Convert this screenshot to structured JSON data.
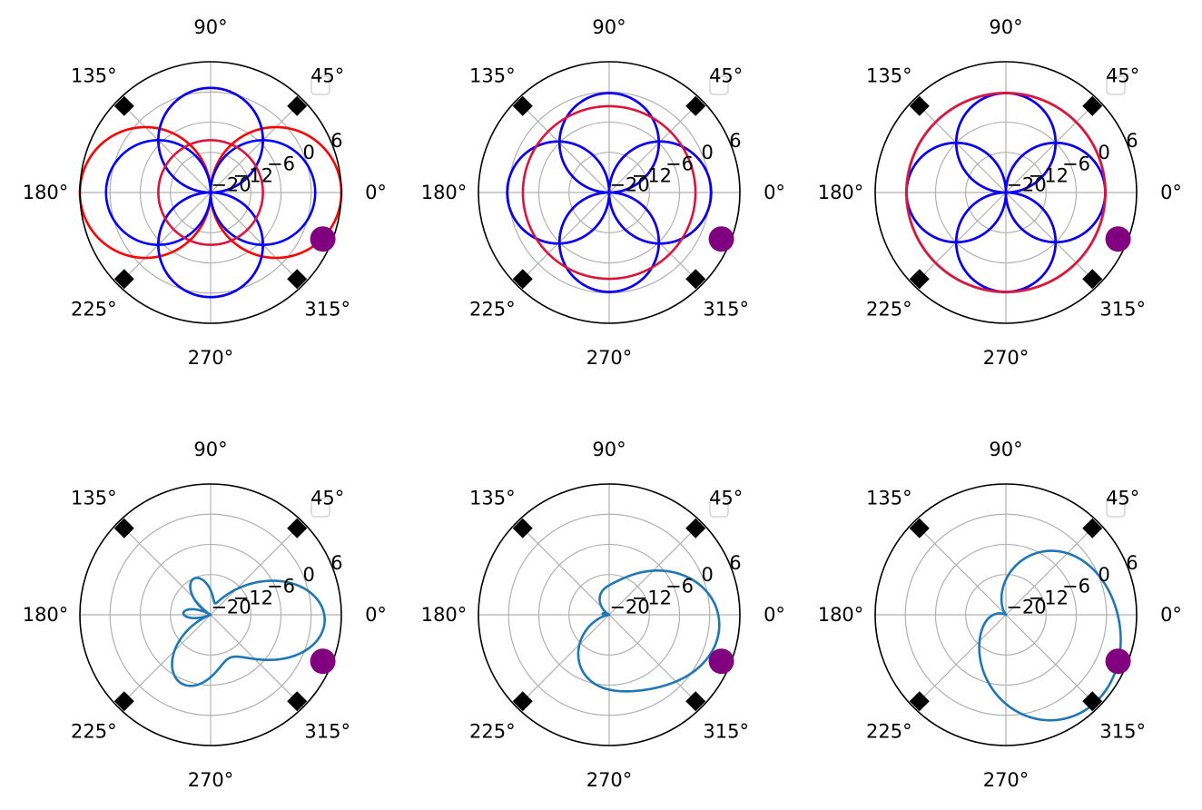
{
  "chart_data": [
    {
      "type": "polar-line",
      "r_ticks": [
        "−20",
        "−12",
        "−6",
        "0",
        "6"
      ],
      "r_tick_values": [
        -20,
        -12,
        -6,
        0,
        6
      ],
      "r_range": [
        -20,
        6
      ],
      "theta_ticks": [
        "0°",
        "45°",
        "90°",
        "135°",
        "180°",
        "225°",
        "270°",
        "315°"
      ],
      "grid": true,
      "legend": "top-right (empty box)",
      "marker_point": {
        "theta_deg": -22.5,
        "r_frac": 0.79,
        "color": "#800080"
      },
      "diamond_markers": {
        "theta_deg": [
          45,
          135,
          225,
          315
        ],
        "r_frac": 0.935,
        "color": "#000000"
      },
      "series": [
        {
          "color": "#ff0000",
          "shape": "cos",
          "gain": 1.0,
          "values_frac": [
            0.0,
            0.2,
            0.4,
            0.6,
            0.8,
            0.9
          ]
        },
        {
          "color": "#ff0000",
          "shape": "sin",
          "gain": 0.8
        },
        {
          "color": "#0000ff",
          "shape": "cos",
          "gain": 0.8
        },
        {
          "color": "#0000ff",
          "shape": "sin",
          "gain": 0.8
        },
        {
          "color": "#dc143c",
          "shape": "circle",
          "gain": 0.4
        }
      ]
    },
    {
      "type": "polar-line",
      "r_ticks": [
        "−20",
        "−12",
        "−6",
        "0",
        "6"
      ],
      "r_tick_values": [
        -20,
        -12,
        -6,
        0,
        6
      ],
      "r_range": [
        -20,
        6
      ],
      "theta_ticks": [
        "0°",
        "45°",
        "90°",
        "135°",
        "180°",
        "225°",
        "270°",
        "315°"
      ],
      "grid": true,
      "legend": "top-right (empty box)",
      "marker_point": {
        "theta_deg": -22.5,
        "r_frac": 0.79,
        "color": "#800080"
      },
      "diamond_markers": {
        "theta_deg": [
          45,
          135,
          225,
          315
        ],
        "r_frac": 0.935,
        "color": "#000000"
      },
      "series": [
        {
          "color": "#ff0000",
          "shape": "cos",
          "gain": 0.78
        },
        {
          "color": "#ff0000",
          "shape": "sin",
          "gain": 0.76
        },
        {
          "color": "#0000ff",
          "shape": "cos",
          "gain": 0.78
        },
        {
          "color": "#0000ff",
          "shape": "sin",
          "gain": 0.76
        },
        {
          "color": "#dc143c",
          "shape": "circle",
          "gain": 0.66
        }
      ]
    },
    {
      "type": "polar-line",
      "r_ticks": [
        "−20",
        "−12",
        "−6",
        "0",
        "6"
      ],
      "r_tick_values": [
        -20,
        -12,
        -6,
        0,
        6
      ],
      "r_range": [
        -20,
        6
      ],
      "theta_ticks": [
        "0°",
        "45°",
        "90°",
        "135°",
        "180°",
        "225°",
        "270°",
        "315°"
      ],
      "grid": true,
      "legend": "top-right (empty box)",
      "marker_point": {
        "theta_deg": -22.5,
        "r_frac": 0.79,
        "color": "#800080"
      },
      "diamond_markers": {
        "theta_deg": [
          45,
          135,
          225,
          315
        ],
        "r_frac": 0.935,
        "color": "#000000"
      },
      "series": [
        {
          "color": "#ff0000",
          "shape": "cos",
          "gain": 0.76
        },
        {
          "color": "#ff0000",
          "shape": "sin",
          "gain": 0.76
        },
        {
          "color": "#0000ff",
          "shape": "cos",
          "gain": 0.76
        },
        {
          "color": "#0000ff",
          "shape": "sin",
          "gain": 0.76
        },
        {
          "color": "#dc143c",
          "shape": "circle",
          "gain": 0.76
        }
      ]
    },
    {
      "type": "polar-line",
      "r_ticks": [
        "−20",
        "−12",
        "−6",
        "0",
        "6"
      ],
      "r_tick_values": [
        -20,
        -12,
        -6,
        0,
        6
      ],
      "r_range": [
        -20,
        6
      ],
      "theta_ticks": [
        "0°",
        "45°",
        "90°",
        "135°",
        "180°",
        "225°",
        "270°",
        "315°"
      ],
      "grid": true,
      "legend": "top-right (empty box)",
      "marker_point": {
        "theta_deg": -22.5,
        "r_frac": 0.79,
        "color": "#800080"
      },
      "diamond_markers": {
        "theta_deg": [
          45,
          135,
          225,
          315
        ],
        "r_frac": 0.935,
        "color": "#000000"
      },
      "series": [
        {
          "color": "#1f77b4",
          "shape": "lobes",
          "params": [
            0.35,
            0.55,
            0.25
          ]
        }
      ]
    },
    {
      "type": "polar-line",
      "r_ticks": [
        "−20",
        "−12",
        "−6",
        "0",
        "6"
      ],
      "r_tick_values": [
        -20,
        -12,
        -6,
        0,
        6
      ],
      "r_range": [
        -20,
        6
      ],
      "theta_ticks": [
        "0°",
        "45°",
        "90°",
        "135°",
        "180°",
        "225°",
        "270°",
        "315°"
      ],
      "grid": true,
      "legend": "top-right (empty box)",
      "marker_point": {
        "theta_deg": -22.5,
        "r_frac": 0.79,
        "color": "#800080"
      },
      "diamond_markers": {
        "theta_deg": [
          45,
          135,
          225,
          315
        ],
        "r_frac": 0.935,
        "color": "#000000"
      },
      "series": [
        {
          "color": "#1f77b4",
          "shape": "lobes",
          "params": [
            0.42,
            0.5,
            0.08
          ]
        }
      ]
    },
    {
      "type": "polar-line",
      "r_ticks": [
        "−20",
        "−12",
        "−6",
        "0",
        "6"
      ],
      "r_tick_values": [
        -20,
        -12,
        -6,
        0,
        6
      ],
      "r_range": [
        -20,
        6
      ],
      "theta_ticks": [
        "0°",
        "45°",
        "90°",
        "135°",
        "180°",
        "225°",
        "270°",
        "315°"
      ],
      "grid": true,
      "legend": "top-right (empty box)",
      "marker_point": {
        "theta_deg": -22.5,
        "r_frac": 0.79,
        "color": "#800080"
      },
      "diamond_markers": {
        "theta_deg": [
          45,
          135,
          225,
          315
        ],
        "r_frac": 0.935,
        "color": "#000000"
      },
      "series": [
        {
          "color": "#1f77b4",
          "shape": "lobes",
          "params": [
            0.5,
            0.45,
            -0.05
          ]
        }
      ]
    }
  ]
}
